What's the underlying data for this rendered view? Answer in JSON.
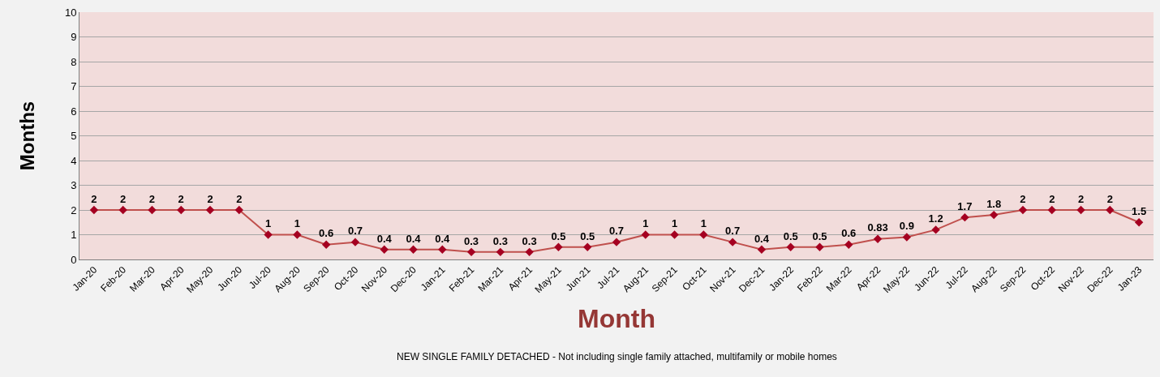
{
  "chart_data": {
    "type": "line",
    "xlabel": "Month",
    "ylabel": "Months",
    "annotations": [
      "NEW SINGLE FAMILY DETACHED - Not including single family attached, multifamily or mobile homes"
    ],
    "categories": [
      "Jan-20",
      "Feb-20",
      "Mar-20",
      "Apr-20",
      "May-20",
      "Jun-20",
      "Jul-20",
      "Aug-20",
      "Sep-20",
      "Oct-20",
      "Nov-20",
      "Dec-20",
      "Jan-21",
      "Feb-21",
      "Mar-21",
      "Apr-21",
      "May-21",
      "Jun-21",
      "Jul-21",
      "Aug-21",
      "Sep-21",
      "Oct-21",
      "Nov-21",
      "Dec-21",
      "Jan-22",
      "Feb-22",
      "Mar-22",
      "Apr-22",
      "May-22",
      "Jun-22",
      "Jul-22",
      "Aug-22",
      "Sep-22",
      "Oct-22",
      "Nov-22",
      "Dec-22",
      "Jan-23"
    ],
    "series": [
      {
        "color": "#c0504d",
        "values": [
          2,
          2,
          2,
          2,
          2,
          2,
          1,
          1,
          0.6,
          0.7,
          0.4,
          0.4,
          0.4,
          0.3,
          0.3,
          0.3,
          0.5,
          0.5,
          0.7,
          1,
          1,
          1,
          0.7,
          0.4,
          0.5,
          0.5,
          0.6,
          0.83,
          0.9,
          1.2,
          1.7,
          1.8,
          2,
          2,
          2,
          2,
          1.5
        ]
      }
    ],
    "ylim": [
      0,
      10
    ],
    "yticks": [
      0,
      1,
      2,
      3,
      4,
      5,
      6,
      7,
      8,
      9,
      10
    ],
    "grid": "y",
    "marker": "diamond",
    "line_style": "solid",
    "data_labels": true
  }
}
